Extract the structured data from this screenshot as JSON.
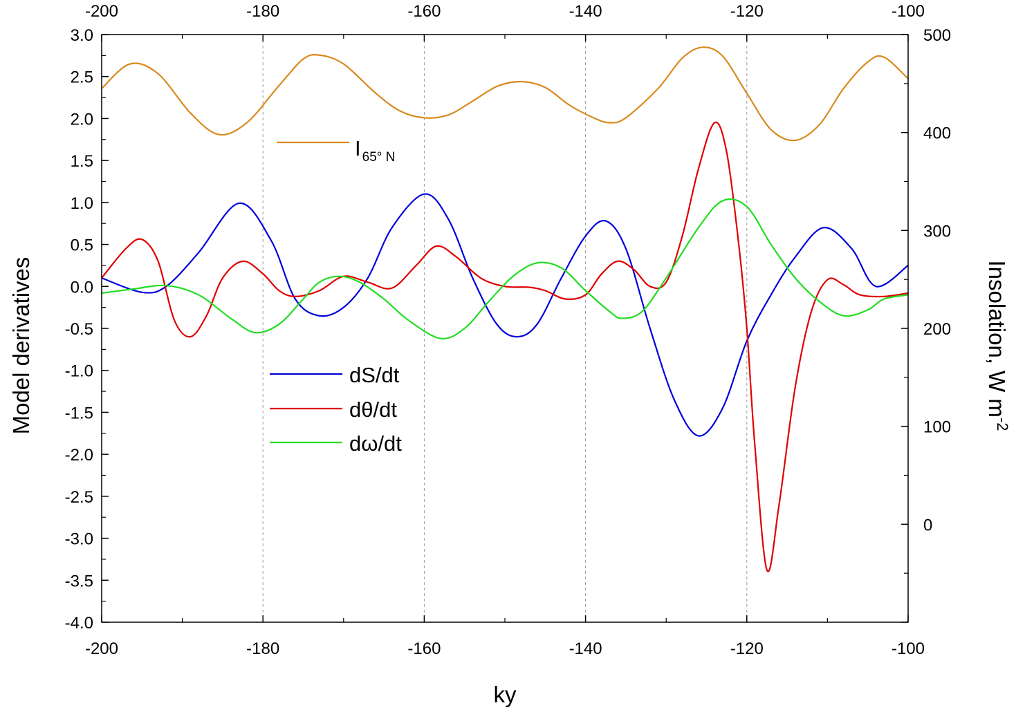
{
  "chart_data": {
    "type": "line",
    "xlabel": "ky",
    "ylabel_left": "Model derivatives",
    "ylabel_right": "Insolation, W m",
    "ylabel_right_sup": "-2",
    "xlim": [
      -200,
      -100
    ],
    "ylim_left": [
      -4.0,
      3.0
    ],
    "ylim_right": [
      -100,
      500
    ],
    "x_ticks": [
      "-200",
      "-180",
      "-160",
      "-140",
      "-120",
      "-100"
    ],
    "y_left_ticks": [
      "3.0",
      "2.5",
      "2.0",
      "1.5",
      "1.0",
      "0.5",
      "0.0",
      "-0.5",
      "-1.0",
      "-1.5",
      "-2.0",
      "-2.5",
      "-3.0",
      "-3.5",
      "-4.0"
    ],
    "y_right_ticks": [
      "500",
      "400",
      "300",
      "200",
      "100",
      "0"
    ],
    "vertical_gridlines": [
      -180,
      -160,
      -140,
      -120
    ],
    "grid": "dashed vertical lines",
    "legend_placement": "center-left",
    "series": [
      {
        "name": "dS/dt",
        "axis": "left",
        "color": "#0000dd",
        "x": [
          -200,
          -195,
          -192,
          -188,
          -183,
          -179,
          -176,
          -173,
          -170,
          -167,
          -164,
          -160,
          -157,
          -154,
          -151,
          -148.5,
          -146,
          -143,
          -140,
          -137.5,
          -135,
          -132,
          -129,
          -126,
          -123,
          -120,
          -117,
          -114,
          -110.5,
          -107,
          -104,
          -100
        ],
        "y": [
          0.1,
          -0.07,
          0.0,
          0.4,
          0.99,
          0.55,
          -0.15,
          -0.35,
          -0.25,
          0.1,
          0.7,
          1.1,
          0.8,
          0.1,
          -0.45,
          -0.6,
          -0.45,
          0.1,
          0.6,
          0.78,
          0.45,
          -0.5,
          -1.35,
          -1.78,
          -1.45,
          -0.65,
          -0.1,
          0.35,
          0.7,
          0.45,
          0.0,
          0.25
        ]
      },
      {
        "name": "dθ/dt",
        "axis": "left",
        "color": "#e00000",
        "x": [
          -200,
          -197,
          -195,
          -193,
          -191,
          -189,
          -187,
          -185,
          -182.5,
          -180,
          -178,
          -176,
          -173,
          -170,
          -167,
          -164,
          -161,
          -158.5,
          -156,
          -153,
          -150,
          -147,
          -145,
          -142.5,
          -140,
          -138,
          -136,
          -134,
          -132,
          -130,
          -128,
          -126,
          -124,
          -122.5,
          -121,
          -120,
          -119,
          -117.5,
          -116,
          -114,
          -112,
          -110,
          -108,
          -106,
          -103,
          -100
        ],
        "y": [
          0.1,
          0.45,
          0.56,
          0.3,
          -0.4,
          -0.6,
          -0.35,
          0.1,
          0.3,
          0.15,
          -0.05,
          -0.12,
          -0.05,
          0.12,
          0.05,
          -0.02,
          0.25,
          0.48,
          0.35,
          0.1,
          0.0,
          -0.01,
          -0.05,
          -0.15,
          -0.1,
          0.15,
          0.3,
          0.2,
          0.0,
          0.05,
          0.6,
          1.4,
          1.95,
          1.6,
          0.5,
          -0.5,
          -1.9,
          -3.38,
          -2.6,
          -1.2,
          -0.3,
          0.08,
          0.02,
          -0.1,
          -0.12,
          -0.08
        ]
      },
      {
        "name": "dω/dt",
        "axis": "left",
        "color": "#22dd22",
        "x": [
          -200,
          -196,
          -192,
          -188,
          -184,
          -181,
          -178,
          -175,
          -173,
          -170.5,
          -168,
          -165,
          -162,
          -158,
          -155,
          -152,
          -149,
          -146,
          -143,
          -140,
          -137,
          -135.5,
          -133,
          -130,
          -126,
          -123,
          -120,
          -117,
          -114,
          -111,
          -108,
          -105,
          -103,
          -100
        ],
        "y": [
          -0.08,
          -0.03,
          0.01,
          -0.1,
          -0.38,
          -0.55,
          -0.45,
          -0.15,
          0.05,
          0.12,
          0.05,
          -0.15,
          -0.4,
          -0.62,
          -0.5,
          -0.18,
          0.12,
          0.28,
          0.22,
          -0.05,
          -0.3,
          -0.38,
          -0.3,
          0.1,
          0.7,
          1.02,
          0.95,
          0.5,
          0.1,
          -0.18,
          -0.35,
          -0.28,
          -0.15,
          -0.1
        ]
      },
      {
        "name": "I",
        "name_sub": "65° N",
        "axis": "right",
        "color": "#d98a1e",
        "x": [
          -200,
          -196.5,
          -193,
          -189,
          -185.5,
          -182,
          -178,
          -175,
          -173,
          -170,
          -166,
          -163,
          -160,
          -157,
          -154,
          -151,
          -148,
          -145,
          -142,
          -139,
          -137,
          -135,
          -131,
          -128,
          -125.5,
          -123,
          -120,
          -117,
          -114,
          -111,
          -108,
          -105,
          -103,
          -100
        ],
        "y": [
          445,
          470,
          460,
          420,
          398,
          410,
          448,
          475,
          479,
          470,
          440,
          422,
          415,
          418,
          432,
          447,
          452,
          446,
          428,
          415,
          410,
          415,
          445,
          476,
          487,
          478,
          440,
          403,
          392,
          408,
          445,
          472,
          477,
          455
        ]
      }
    ]
  }
}
